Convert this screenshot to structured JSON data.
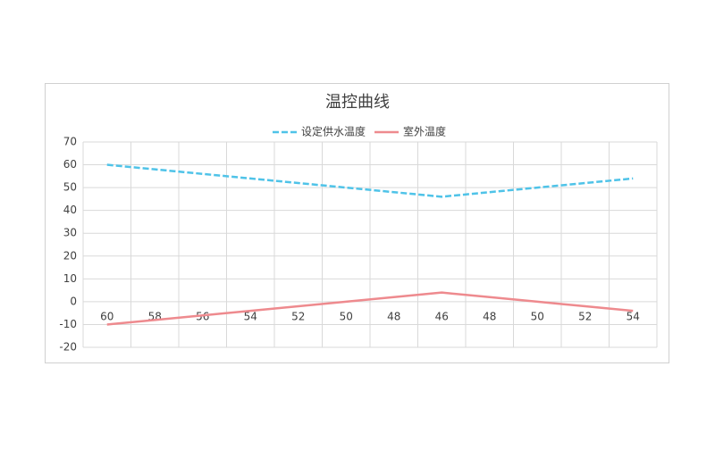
{
  "chart_data": {
    "type": "line",
    "title": "温控曲线",
    "categories": [
      "60",
      "58",
      "56",
      "54",
      "52",
      "50",
      "48",
      "46",
      "48",
      "50",
      "52",
      "54"
    ],
    "series": [
      {
        "name": "设定供水温度",
        "color": "#4fc3e8",
        "dashed": true,
        "values": [
          60,
          58,
          56,
          54,
          52,
          50,
          48,
          46,
          48,
          50,
          52,
          54
        ]
      },
      {
        "name": "室外温度",
        "color": "#ee8a8e",
        "dashed": false,
        "values": [
          -10,
          -8,
          -6,
          -4,
          -2,
          0,
          2,
          4,
          2,
          0,
          -2,
          -4
        ]
      }
    ],
    "ylim": [
      -20,
      70
    ],
    "yticks": [
      -20,
      -10,
      0,
      10,
      20,
      30,
      40,
      50,
      60,
      70
    ],
    "grid": true,
    "legend": "top"
  }
}
